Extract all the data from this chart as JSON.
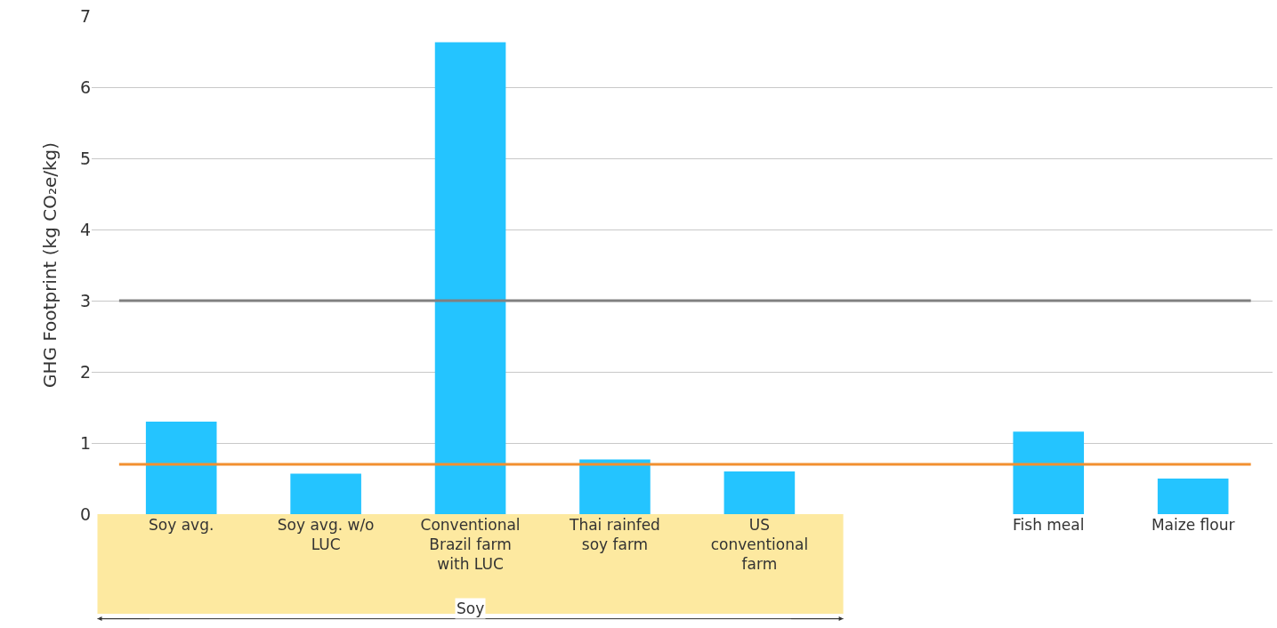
{
  "chart_data": {
    "type": "bar",
    "ylabel": "GHG Footprint (kg CO₂e/kg)",
    "categories": [
      "Soy avg.",
      "Soy avg. w/o LUC",
      "Conventional Brazil farm with LUC",
      "Thai rainfed soy farm",
      "US conventional farm",
      null,
      "Fish meal",
      "Maize flour"
    ],
    "values": [
      1.3,
      0.57,
      6.63,
      0.77,
      0.6,
      null,
      1.16,
      0.5
    ],
    "color": "#24c4ff",
    "ylim": [
      0,
      7
    ],
    "yticks": [
      0,
      1,
      2,
      3,
      4,
      5,
      6,
      7
    ],
    "grid": "y",
    "ref_lines": [
      {
        "axis": "y",
        "value": 3,
        "color": "#808080"
      },
      {
        "axis": "y",
        "value": 0.7,
        "color": "#f29030"
      }
    ],
    "annotations": [
      "Soy"
    ]
  }
}
